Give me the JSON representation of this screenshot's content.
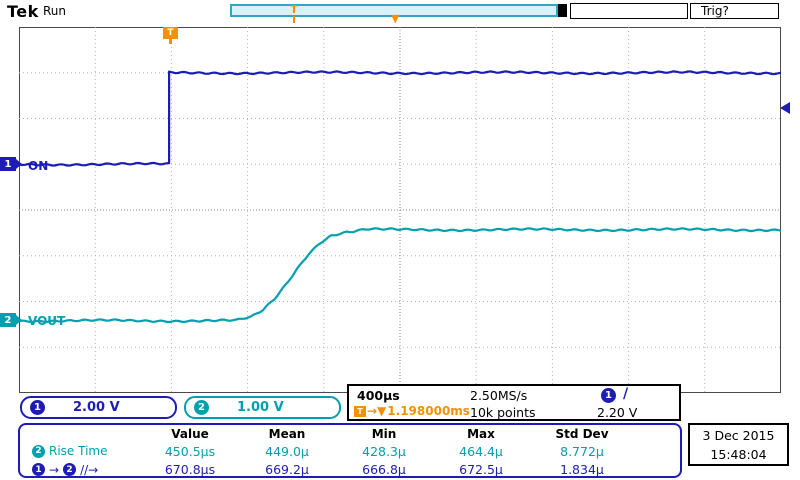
{
  "colors": {
    "ch1": "#1d1db5",
    "ch2": "#00a0ae",
    "trigger_orange": "#f59100"
  },
  "header": {
    "logo": "Tek",
    "acq_state": "Run",
    "trigger_status": "Trig?"
  },
  "plot": {
    "ch1_trace_label": "ON",
    "ch2_trace_label": "VOUT",
    "ch1_marker": "1",
    "ch2_marker": "2",
    "trigger_flag": "T",
    "record_bar_marker": "T",
    "expansion_marker": "▼"
  },
  "readouts": {
    "ch1": {
      "badge": "1",
      "scale": "2.00 V"
    },
    "ch2": {
      "badge": "2",
      "scale": "1.00 V"
    },
    "horizontal": {
      "timebase": "400µs",
      "sample_rate": "2.50MS/s",
      "record_length": "10k points"
    },
    "trigger": {
      "t_label": "T",
      "arrow_glyphs": "→▼",
      "position": "1.198000ms",
      "source_badge": "1",
      "slope_icon": "/",
      "level": "2.20 V"
    },
    "datetime": {
      "date": "3 Dec 2015",
      "time": "15:48:04"
    }
  },
  "measurements": {
    "headers": [
      "Value",
      "Mean",
      "Min",
      "Max",
      "Std Dev"
    ],
    "rows": [
      {
        "badge": "2",
        "label": "Rise Time",
        "value": "450.5µs",
        "mean": "449.0µ",
        "min": "428.3µ",
        "max": "464.4µ",
        "std_dev": "8.772µ"
      },
      {
        "badge_from": "1",
        "arrow": "→",
        "badge_to": "2",
        "slope_icons": "//→",
        "value": "670.8µs",
        "mean": "669.2µ",
        "min": "666.8µ",
        "max": "672.5µ",
        "std_dev": "1.834µ"
      }
    ]
  },
  "chart_data": {
    "type": "line",
    "title": "Oscilloscope capture: CH1 ON step and CH2 VOUT rise",
    "x_axis": {
      "per_div": "400µs",
      "divisions": 10,
      "trigger_position_div": 1.97,
      "trigger_to_center": "1.198000ms",
      "sample_rate": "2.50MS/s",
      "record_length": "10k points"
    },
    "y_axis": {
      "divisions": 8,
      "ch1_scale": "2.00 V/div",
      "ch2_scale": "1.00 V/div",
      "trigger_level": "2.20 V"
    },
    "grid": "dotted 10x8 divisions",
    "series": [
      {
        "name": "CH1 ON",
        "color": "#1d1db5",
        "points_div": [
          [
            0,
            3.0
          ],
          [
            1.97,
            3.0
          ],
          [
            1.97,
            1.0
          ],
          [
            10,
            1.0
          ]
        ]
      },
      {
        "name": "CH2 VOUT",
        "color": "#00a0ae",
        "points_div": [
          [
            0,
            6.42
          ],
          [
            2.85,
            6.42
          ],
          [
            3.05,
            6.34
          ],
          [
            3.2,
            6.2
          ],
          [
            3.35,
            5.96
          ],
          [
            3.5,
            5.64
          ],
          [
            3.65,
            5.28
          ],
          [
            3.8,
            4.95
          ],
          [
            3.95,
            4.71
          ],
          [
            4.1,
            4.56
          ],
          [
            4.3,
            4.47
          ],
          [
            4.55,
            4.43
          ],
          [
            10,
            4.43
          ]
        ]
      }
    ],
    "measurements": [
      {
        "source": "CH2",
        "name": "Rise Time",
        "value_us": 450.5,
        "mean_us": 449.0,
        "min_us": 428.3,
        "max_us": 464.4,
        "std_dev_us": 8.772
      },
      {
        "source": "CH1→CH2",
        "name": "Delay rise-to-rise",
        "value_us": 670.8,
        "mean_us": 669.2,
        "min_us": 666.8,
        "max_us": 672.5,
        "std_dev_us": 1.834
      }
    ]
  }
}
